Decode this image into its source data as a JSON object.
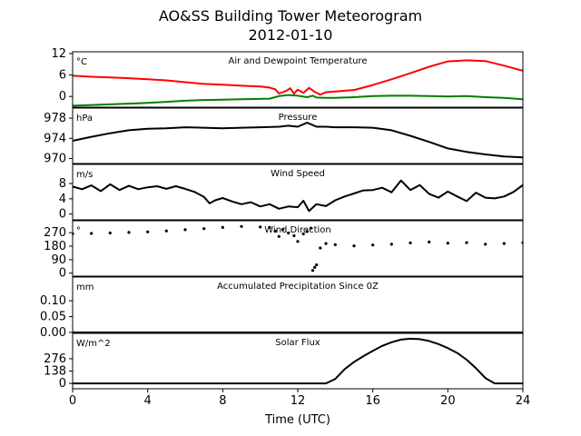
{
  "figure": {
    "title": "AO&SS Building Tower Meteorogram",
    "subtitle": "2012-01-10",
    "xlabel": "Time (UTC)",
    "x_ticks": [
      0,
      4,
      8,
      12,
      16,
      20,
      24
    ],
    "xlim": [
      0,
      24
    ]
  },
  "chart_data": [
    {
      "type": "line",
      "title": "Air and Dewpoint Temperature",
      "unit": "°C",
      "ylim": [
        -3,
        12.5
      ],
      "y_ticks": [
        0,
        6,
        12
      ],
      "grid": false,
      "series": [
        {
          "color": "#ff0000",
          "x": [
            0,
            1,
            2,
            3,
            4,
            5,
            6,
            7,
            8,
            9,
            10,
            10.5,
            10.8,
            11,
            11.4,
            11.6,
            11.8,
            12,
            12.3,
            12.6,
            12.9,
            13.2,
            13.5,
            14,
            15,
            16,
            17,
            18,
            19,
            20,
            21,
            22,
            23,
            24
          ],
          "y": [
            5.8,
            5.5,
            5.3,
            5.1,
            4.8,
            4.5,
            4.0,
            3.5,
            3.3,
            3.0,
            2.8,
            2.5,
            2.0,
            0.8,
            1.6,
            2.3,
            0.8,
            1.9,
            1.0,
            2.4,
            1.3,
            0.5,
            1.2,
            1.4,
            1.8,
            3.2,
            4.8,
            6.5,
            8.3,
            9.8,
            10.1,
            9.9,
            8.6,
            7.2
          ]
        },
        {
          "color": "#008000",
          "x": [
            0,
            1,
            2,
            3,
            4,
            5,
            6,
            7,
            8,
            9,
            10,
            10.5,
            11,
            11.5,
            12,
            12.5,
            12.8,
            13,
            13.5,
            14,
            15,
            16,
            17,
            18,
            19,
            20,
            21,
            22,
            23,
            24
          ],
          "y": [
            -2.6,
            -2.4,
            -2.2,
            -2.0,
            -1.8,
            -1.5,
            -1.2,
            -1.0,
            -0.9,
            -0.8,
            -0.7,
            -0.6,
            0.1,
            0.4,
            0.2,
            -0.2,
            0.2,
            -0.3,
            -0.4,
            -0.4,
            -0.2,
            0.1,
            0.2,
            0.2,
            0.1,
            0.0,
            0.1,
            -0.2,
            -0.4,
            -0.8
          ]
        }
      ]
    },
    {
      "type": "line",
      "title": "Pressure",
      "unit": "hPa",
      "ylim": [
        969,
        980
      ],
      "y_ticks": [
        970,
        974,
        978
      ],
      "grid": false,
      "series": [
        {
          "color": "#000000",
          "x": [
            0,
            1,
            2,
            3,
            4,
            5,
            6,
            7,
            8,
            9,
            10,
            11,
            11.5,
            12,
            12.5,
            13,
            13.5,
            14,
            15,
            16,
            17,
            18,
            19,
            20,
            21,
            22,
            23,
            24
          ],
          "y": [
            973.5,
            974.3,
            975.0,
            975.6,
            975.9,
            976.0,
            976.2,
            976.1,
            976.0,
            976.1,
            976.2,
            976.3,
            976.5,
            976.3,
            977.1,
            976.3,
            976.3,
            976.2,
            976.2,
            976.1,
            975.6,
            974.5,
            973.3,
            972.0,
            971.3,
            970.8,
            970.4,
            970.2
          ]
        }
      ]
    },
    {
      "type": "line",
      "title": "Wind Speed",
      "unit": "m/s",
      "ylim": [
        -1.5,
        13
      ],
      "y_ticks": [
        0,
        4,
        8
      ],
      "grid": false,
      "series": [
        {
          "color": "#000000",
          "x": [
            0,
            0.5,
            1,
            1.5,
            2,
            2.5,
            3,
            3.5,
            4,
            4.5,
            5,
            5.5,
            6,
            6.5,
            7,
            7.3,
            7.6,
            8,
            8.5,
            9,
            9.5,
            10,
            10.5,
            11,
            11.5,
            12,
            12.3,
            12.6,
            13,
            13.5,
            14,
            14.5,
            15,
            15.5,
            16,
            16.5,
            17,
            17.5,
            18,
            18.5,
            19,
            19.5,
            20,
            20.5,
            21,
            21.5,
            22,
            22.5,
            23,
            23.5,
            24
          ],
          "y": [
            7.2,
            6.5,
            7.5,
            6.0,
            7.8,
            6.3,
            7.4,
            6.5,
            7.0,
            7.3,
            6.6,
            7.3,
            6.6,
            5.8,
            4.5,
            2.8,
            3.6,
            4.2,
            3.3,
            2.6,
            3.1,
            2.0,
            2.6,
            1.4,
            2.0,
            1.8,
            3.5,
            0.8,
            2.6,
            2.1,
            3.6,
            4.6,
            5.4,
            6.2,
            6.3,
            6.9,
            5.7,
            8.8,
            6.3,
            7.6,
            5.3,
            4.3,
            5.9,
            4.6,
            3.4,
            5.6,
            4.3,
            4.1,
            4.6,
            5.8,
            7.6
          ]
        }
      ]
    },
    {
      "type": "scatter",
      "title": "Wind Direction",
      "unit": "°",
      "ylim": [
        -20,
        350
      ],
      "y_ticks": [
        0,
        90,
        180,
        270
      ],
      "grid": false,
      "series": [
        {
          "color": "#000000",
          "x": [
            0,
            1,
            2,
            3,
            4,
            5,
            6,
            7,
            8,
            9,
            10,
            10.5,
            10.8,
            11.0,
            11.2,
            11.5,
            11.8,
            12.0,
            12.3,
            12.5,
            12.7,
            12.8,
            12.9,
            13.0,
            13.2,
            13.5,
            14,
            15,
            16,
            17,
            18,
            19,
            20,
            21,
            22,
            23,
            24
          ],
          "y": [
            262,
            265,
            268,
            272,
            276,
            282,
            290,
            297,
            305,
            312,
            308,
            305,
            280,
            245,
            292,
            268,
            250,
            212,
            262,
            278,
            300,
            18,
            38,
            55,
            168,
            198,
            190,
            182,
            188,
            193,
            202,
            208,
            200,
            204,
            193,
            198,
            203
          ]
        }
      ]
    },
    {
      "type": "line",
      "title": "Accumulated Precipitation Since 0Z",
      "unit": "mm",
      "ylim": [
        0,
        0.175
      ],
      "y_ticks": [
        0.0,
        0.05,
        0.1
      ],
      "y_tick_labels": [
        "0.00",
        "0.05",
        "0.10"
      ],
      "grid": false,
      "series": [
        {
          "color": "#000000",
          "x": [
            0,
            24
          ],
          "y": [
            0.0,
            0.0
          ]
        }
      ]
    },
    {
      "type": "line",
      "title": "Solar Flux",
      "unit": "W/m^2",
      "ylim": [
        -60,
        560
      ],
      "y_ticks": [
        0,
        138,
        276
      ],
      "grid": false,
      "series": [
        {
          "color": "#000000",
          "x": [
            0,
            10,
            13.5,
            14,
            14.5,
            15,
            15.5,
            16,
            16.5,
            17,
            17.5,
            18,
            18.5,
            19,
            19.5,
            20,
            20.5,
            21,
            21.5,
            22,
            22.5,
            24
          ],
          "y": [
            0,
            0,
            0,
            50,
            160,
            240,
            305,
            365,
            420,
            460,
            490,
            500,
            495,
            475,
            440,
            395,
            340,
            265,
            170,
            60,
            0,
            0
          ]
        }
      ]
    }
  ]
}
